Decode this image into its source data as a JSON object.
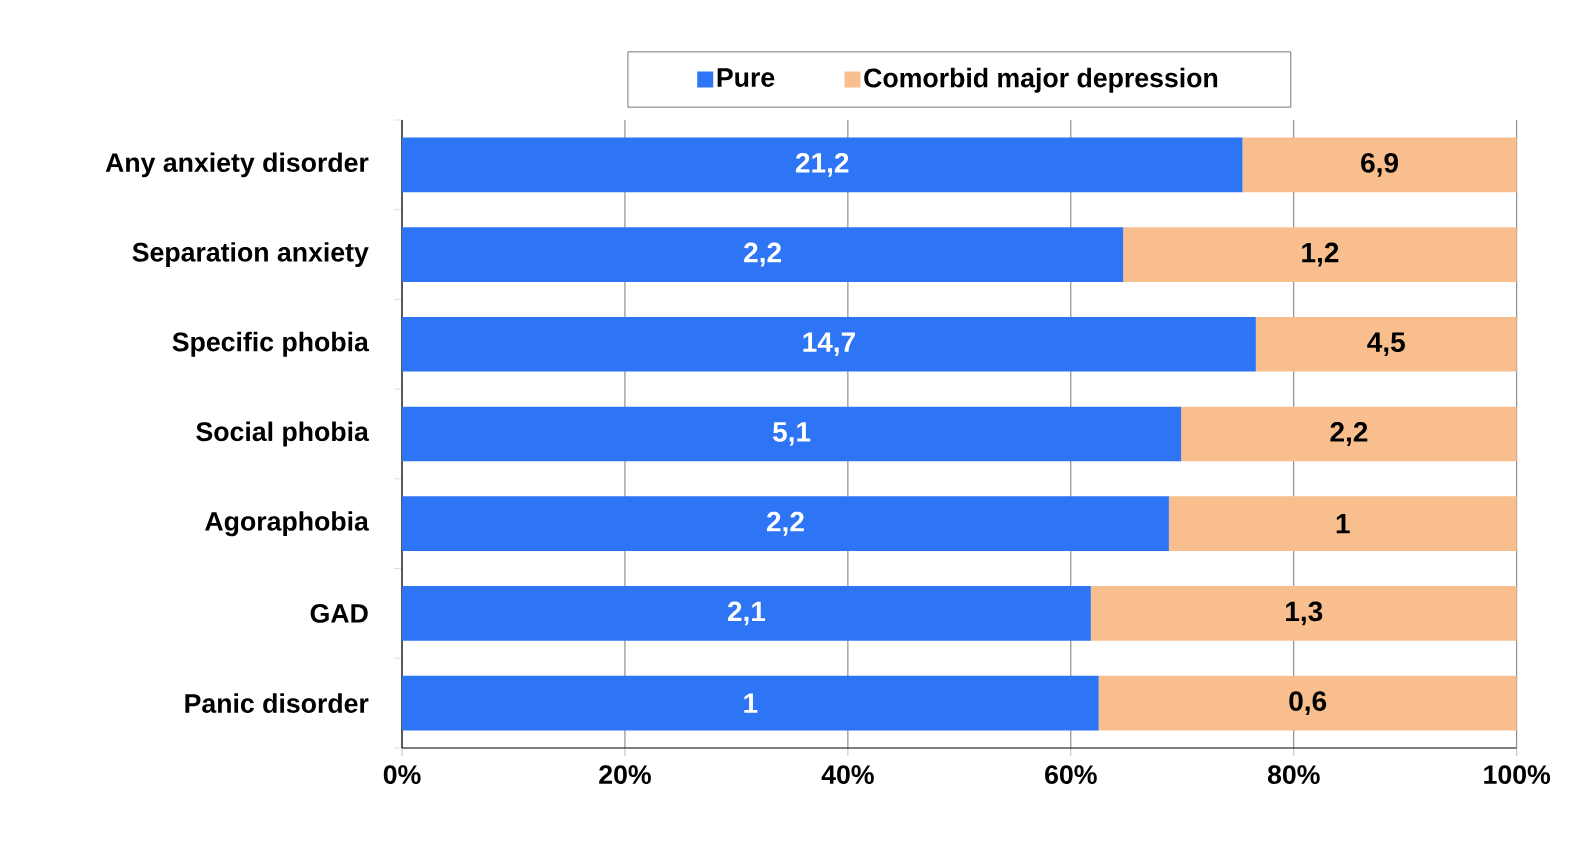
{
  "chart_data": {
    "type": "bar",
    "orientation": "horizontal",
    "stacked": true,
    "categories": [
      "Any anxiety disorder",
      "Separation anxiety",
      "Specific phobia",
      "Social phobia",
      "Agoraphobia",
      "GAD",
      "Panic disorder"
    ],
    "series": [
      {
        "name": "Pure",
        "color": "#2e75f5",
        "values": [
          75.4,
          64.7,
          76.6,
          69.9,
          68.8,
          61.8,
          62.5
        ]
      },
      {
        "name": "Comorbid major depression",
        "color": "#f9be8d",
        "values": [
          24.6,
          35.3,
          23.4,
          30.1,
          31.2,
          38.2,
          37.5
        ]
      }
    ],
    "annotations": [
      "21,2",
      "2,2",
      "14,7",
      "5,1",
      "2,2",
      "2,1",
      "1",
      "6,9",
      "1,2",
      "4,5",
      "2,2",
      "1",
      "1,3",
      "0,6"
    ],
    "xlim": [
      0,
      100
    ],
    "xticks": [
      {
        "value": 0,
        "label": "0%"
      },
      {
        "value": 20,
        "label": "20%"
      },
      {
        "value": 40,
        "label": "40%"
      },
      {
        "value": 60,
        "label": "60%"
      },
      {
        "value": 80,
        "label": "80%"
      },
      {
        "value": 100,
        "label": "100%"
      }
    ],
    "grid": "x",
    "legend": "top"
  }
}
